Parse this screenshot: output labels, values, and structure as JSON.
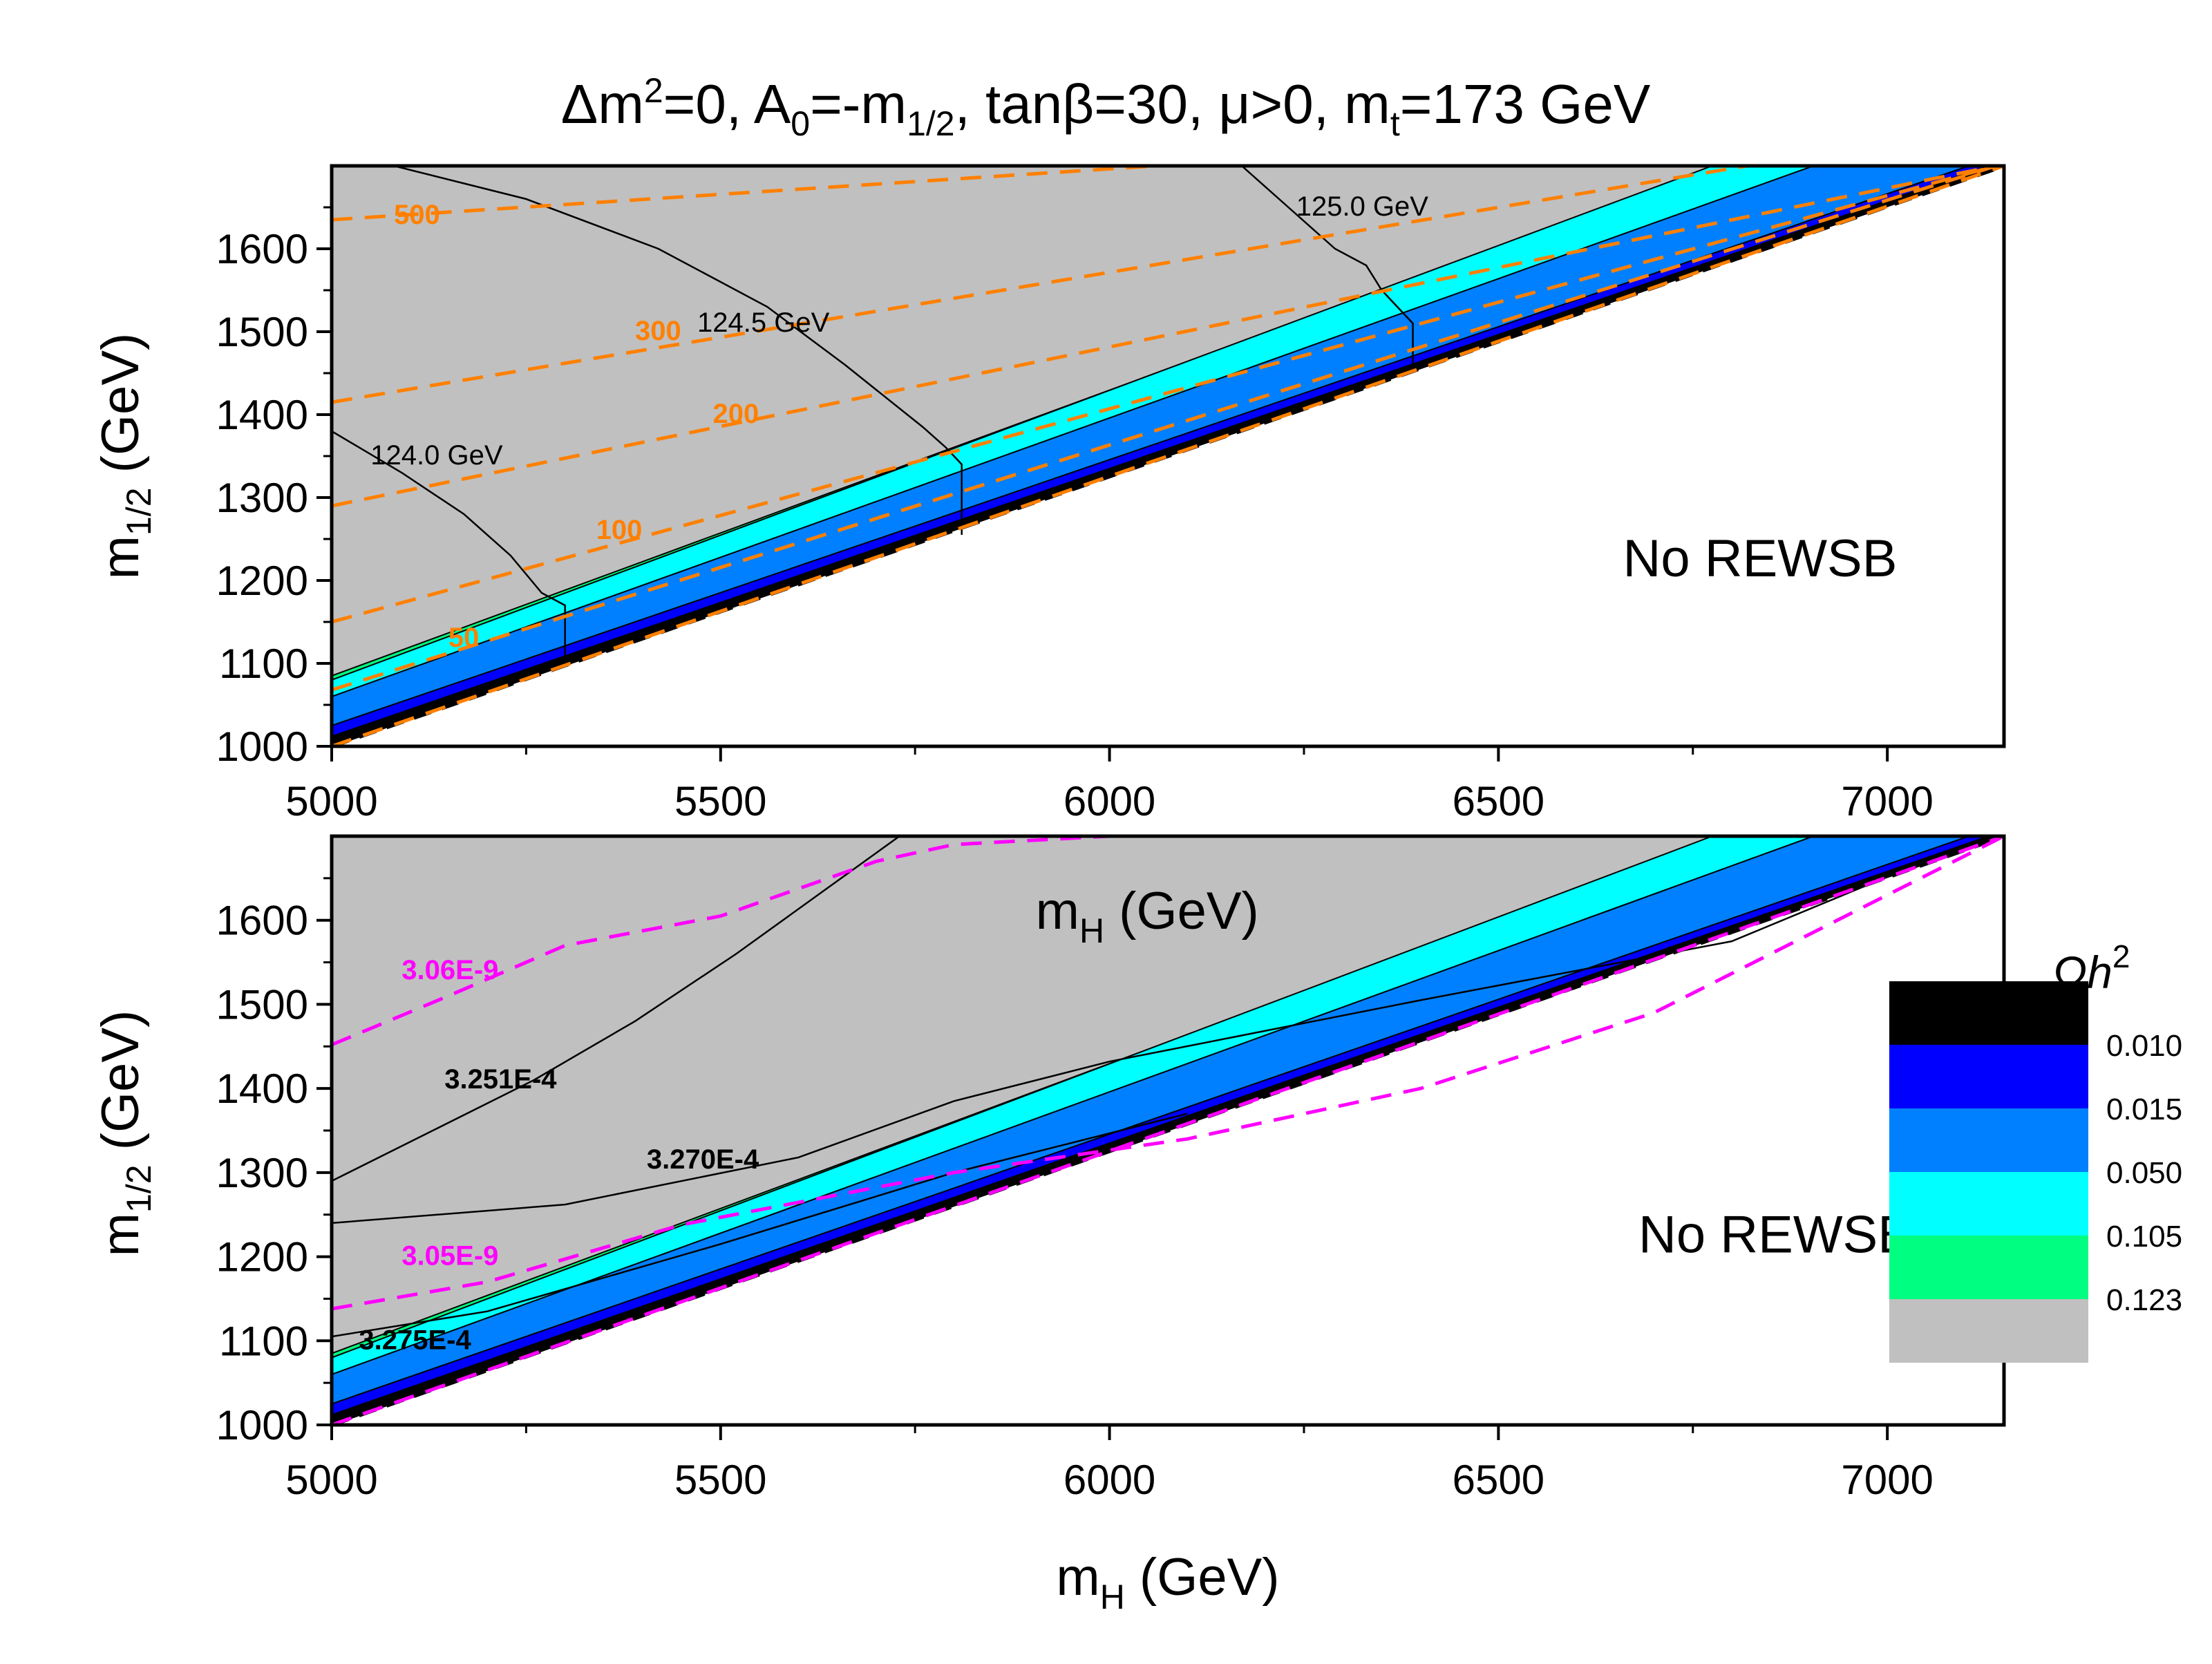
{
  "figure": {
    "title": {
      "delta_sym": "Δ",
      "m": "m",
      "sq": "2",
      "eq0": "=0, A",
      "a_sub": "0",
      "eq_minus": "=-m",
      "half_sub": "1/2",
      "tanb_pre": ", tan",
      "beta": "β",
      "tanb_eq": "=30, ",
      "mu": "μ",
      "mu_gt": ">0, m",
      "t_sub": "t",
      "mt_val": "=173 GeV"
    },
    "ylabel": {
      "m": "m",
      "sub": "1/2",
      "unit": " (GeV)"
    },
    "xlabel": {
      "m": "m",
      "sub": "H",
      "unit": " (GeV)"
    },
    "no_rewsb": "No REWSB"
  },
  "colors": {
    "black": "#000000",
    "blue": "#0000ff",
    "midblue": "#0080ff",
    "cyan": "#00ffff",
    "green": "#00ff80",
    "gray": "#c0c0c0",
    "orange": "#ff8000",
    "magenta": "#ff00ff"
  },
  "legend": {
    "title": "Ωh",
    "title_sup": "2",
    "entries": [
      {
        "label": "0.010",
        "color": "#000000"
      },
      {
        "label": "0.015",
        "color": "#0000ff"
      },
      {
        "label": "0.050",
        "color": "#0080ff"
      },
      {
        "label": "0.105",
        "color": "#00ffff"
      },
      {
        "label": "0.123",
        "color": "#00ff80"
      },
      {
        "label": "",
        "color": "#c0c0c0"
      }
    ]
  },
  "chart_data": [
    {
      "type": "contour",
      "panel": "top",
      "xlabel": "m_H (GeV)",
      "ylabel": "m_1/2 (GeV)",
      "xlim": [
        5000,
        7150
      ],
      "ylim": [
        1000,
        1700
      ],
      "xticks": [
        5000,
        5500,
        6000,
        6500,
        7000
      ],
      "yticks": [
        1000,
        1100,
        1200,
        1300,
        1400,
        1500,
        1600
      ],
      "ewsb_boundary": {
        "x": [
          5000,
          7150
        ],
        "y": [
          1000,
          1700
        ]
      },
      "relic_bands": [
        {
          "label": "0.123",
          "color": "#00ff80",
          "top": {
            "x": [
              5000,
              6785
            ],
            "y": [
              1085,
              1700
            ]
          }
        },
        {
          "label": "0.105",
          "color": "#00ffff",
          "top": {
            "x": [
              5000,
              6775
            ],
            "y": [
              1080,
              1700
            ]
          }
        },
        {
          "label": "0.050",
          "color": "#0080ff",
          "top": {
            "x": [
              5000,
              6905
            ],
            "y": [
              1060,
              1700
            ]
          }
        },
        {
          "label": "0.015",
          "color": "#0000ff",
          "top": {
            "x": [
              5000,
              7105
            ],
            "y": [
              1025,
              1700
            ]
          }
        },
        {
          "label": "0.010",
          "color": "#000000",
          "top": {
            "x": [
              5000,
              7130
            ],
            "y": [
              1012,
              1700
            ]
          }
        }
      ],
      "higgs_mass_contours": [
        {
          "label": "124.0 GeV",
          "x": [
            5000,
            5090,
            5170,
            5230,
            5270,
            5300,
            5300
          ],
          "y": [
            1380,
            1330,
            1280,
            1230,
            1185,
            1170,
            1100
          ]
        },
        {
          "label": "124.5 GeV",
          "x": [
            5080,
            5250,
            5420,
            5560,
            5660,
            5760,
            5790,
            5810,
            5810
          ],
          "y": [
            1700,
            1660,
            1600,
            1530,
            1460,
            1385,
            1360,
            1340,
            1255
          ]
        },
        {
          "label": "125.0 GeV",
          "x": [
            6170,
            6230,
            6290,
            6330,
            6350,
            6370,
            6390,
            6390
          ],
          "y": [
            1700,
            1650,
            1600,
            1580,
            1550,
            1530,
            1510,
            1460
          ]
        }
      ],
      "stop_mass_difference_contours": [
        {
          "label": "500",
          "x": [
            5000,
            6060
          ],
          "y": [
            1635,
            1700
          ]
        },
        {
          "label": "300",
          "x": [
            5000,
            6820
          ],
          "y": [
            1415,
            1700
          ]
        },
        {
          "label": "200",
          "x": [
            5000,
            7140
          ],
          "y": [
            1290,
            1700
          ]
        },
        {
          "label": "100",
          "x": [
            5000,
            7140
          ],
          "y": [
            1150,
            1700
          ]
        },
        {
          "label": "50",
          "x": [
            5000,
            7140
          ],
          "y": [
            1068,
            1700
          ]
        },
        {
          "label": "",
          "x": [
            5000,
            7150
          ],
          "y": [
            1000,
            1700
          ]
        }
      ],
      "annotations": [
        {
          "text": "500",
          "x": 5080,
          "y": 1630,
          "color": "#ff8000"
        },
        {
          "text": "300",
          "x": 5390,
          "y": 1490,
          "color": "#ff8000"
        },
        {
          "text": "200",
          "x": 5490,
          "y": 1390,
          "color": "#ff8000"
        },
        {
          "text": "100",
          "x": 5340,
          "y": 1250,
          "color": "#ff8000"
        },
        {
          "text": "50",
          "x": 5150,
          "y": 1120,
          "color": "#ff8000"
        },
        {
          "text": "124.0 GeV",
          "x": 5050,
          "y": 1340,
          "color": "#000000"
        },
        {
          "text": "124.5 GeV",
          "x": 5470,
          "y": 1500,
          "color": "#000000"
        },
        {
          "text": "125.0 GeV",
          "x": 6240,
          "y": 1640,
          "color": "#000000"
        },
        {
          "text": "No REWSB",
          "x": 6660,
          "y": 1205,
          "color": "#000000"
        }
      ]
    },
    {
      "type": "contour",
      "panel": "bottom",
      "xlabel": "m_H (GeV)",
      "ylabel": "m_1/2 (GeV)",
      "xlim": [
        5000,
        7150
      ],
      "ylim": [
        1000,
        1700
      ],
      "xticks": [
        5000,
        5500,
        6000,
        6500,
        7000
      ],
      "yticks": [
        1000,
        1100,
        1200,
        1300,
        1400,
        1500,
        1600
      ],
      "ewsb_boundary": {
        "x": [
          5000,
          7150
        ],
        "y": [
          1000,
          1700
        ]
      },
      "relic_bands": [
        {
          "label": "0.123",
          "color": "#00ff80",
          "top": {
            "x": [
              5000,
              6785
            ],
            "y": [
              1085,
              1700
            ]
          }
        },
        {
          "label": "0.105",
          "color": "#00ffff",
          "top": {
            "x": [
              5000,
              6775
            ],
            "y": [
              1080,
              1700
            ]
          }
        },
        {
          "label": "0.050",
          "color": "#0080ff",
          "top": {
            "x": [
              5000,
              6905
            ],
            "y": [
              1060,
              1700
            ]
          }
        },
        {
          "label": "0.015",
          "color": "#0000ff",
          "top": {
            "x": [
              5000,
              7105
            ],
            "y": [
              1025,
              1700
            ]
          }
        },
        {
          "label": "0.010",
          "color": "#000000",
          "top": {
            "x": [
              5000,
              7130
            ],
            "y": [
              1012,
              1700
            ]
          }
        }
      ],
      "quantity_contours_black": [
        {
          "label": "3.251E-4",
          "x": [
            5000,
            5130,
            5260,
            5390,
            5520,
            5640,
            5730
          ],
          "y": [
            1290,
            1350,
            1410,
            1480,
            1560,
            1640,
            1700
          ]
        },
        {
          "label": "3.270E-4",
          "x": [
            5000,
            5300,
            5600,
            5800,
            6000,
            6400,
            6800,
            7100
          ],
          "y": [
            1240,
            1262,
            1318,
            1385,
            1432,
            1505,
            1575,
            1690
          ]
        },
        {
          "label": "3.275E-4",
          "x": [
            5000,
            5200,
            5500,
            5800,
            6100
          ],
          "y": [
            1105,
            1135,
            1215,
            1300,
            1370
          ]
        }
      ],
      "quantity_contours_magenta": [
        {
          "label": "3.06E-9",
          "x": [
            5000,
            5150,
            5300,
            5500,
            5700,
            5800,
            6000
          ],
          "y": [
            1452,
            1510,
            1570,
            1605,
            1670,
            1690,
            1700
          ]
        },
        {
          "label": "3.05E-9",
          "x": [
            5000,
            5200,
            5450,
            5800,
            6100,
            6400,
            6700,
            7150
          ],
          "y": [
            1138,
            1170,
            1238,
            1300,
            1340,
            1400,
            1490,
            1700
          ]
        },
        {
          "label": "",
          "x": [
            5000,
            7150
          ],
          "y": [
            1000,
            1700
          ]
        }
      ],
      "annotations": [
        {
          "text": "3.06E-9",
          "x": 5090,
          "y": 1530,
          "color": "#ff00ff"
        },
        {
          "text": "3.251E-4",
          "x": 5145,
          "y": 1400,
          "color": "#000000"
        },
        {
          "text": "3.270E-4",
          "x": 5405,
          "y": 1305,
          "color": "#000000"
        },
        {
          "text": "3.05E-9",
          "x": 5090,
          "y": 1190,
          "color": "#ff00ff"
        },
        {
          "text": "3.275E-4",
          "x": 5035,
          "y": 1090,
          "color": "#000000"
        },
        {
          "text": "m_H (GeV)",
          "x": 5905,
          "y": 1590,
          "color": "#000000"
        },
        {
          "text": "No REWSB",
          "x": 6680,
          "y": 1205,
          "color": "#000000"
        }
      ]
    }
  ]
}
